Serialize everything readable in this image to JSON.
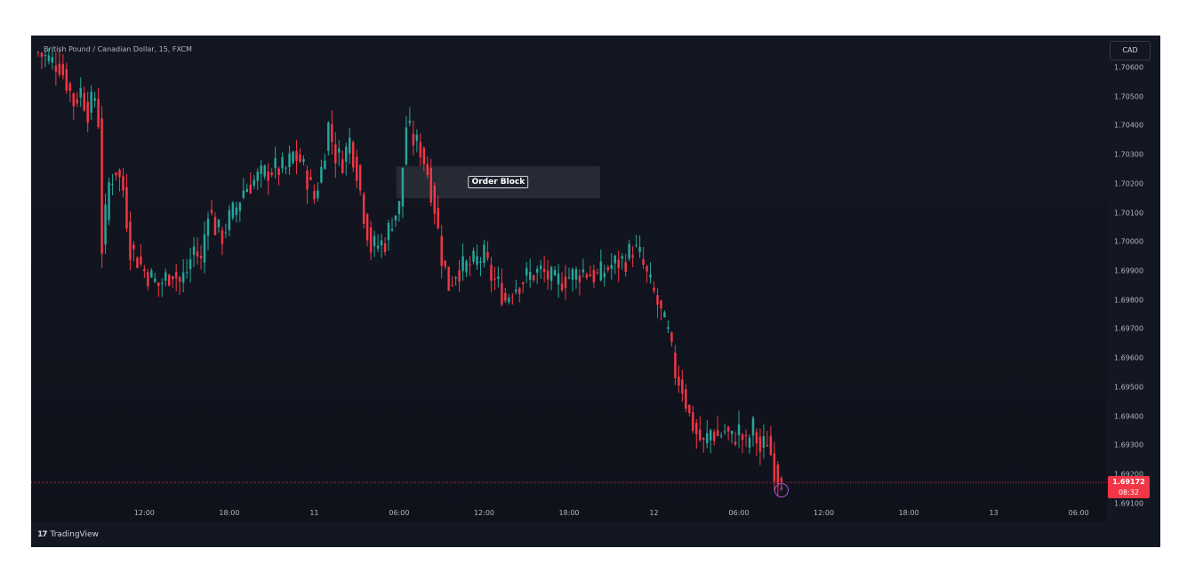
{
  "chart_data": {
    "type": "candlestick",
    "title": "British Pound / Canadian Dollar, 15, FXCM",
    "quote_currency": "CAD",
    "ylim": [
      1.6909,
      1.7071
    ],
    "y_ticks": [
      1.706,
      1.705,
      1.704,
      1.703,
      1.702,
      1.701,
      1.7,
      1.699,
      1.698,
      1.697,
      1.696,
      1.695,
      1.694,
      1.693,
      1.692,
      1.691
    ],
    "y_tick_labels": [
      "1.70600",
      "1.70500",
      "1.70400",
      "1.70300",
      "1.70200",
      "1.70100",
      "1.70000",
      "1.69900",
      "1.69800",
      "1.69700",
      "1.69600",
      "1.69500",
      "1.69400",
      "1.69300",
      "1.69200",
      "1.69100"
    ],
    "x_range_hours": [
      0,
      60
    ],
    "x_ticks": [
      {
        "t": 2,
        "label": "12:00"
      },
      {
        "t": 8,
        "label": "18:00"
      },
      {
        "t": 14,
        "label": "11"
      },
      {
        "t": 20,
        "label": "06:00"
      },
      {
        "t": 26,
        "label": "12:00"
      },
      {
        "t": 32,
        "label": "18:00"
      },
      {
        "t": 38,
        "label": "12"
      },
      {
        "t": 44,
        "label": "06:00"
      },
      {
        "t": 50,
        "label": "12:00"
      },
      {
        "t": 56,
        "label": "18:00"
      },
      {
        "t": 62,
        "label": "13"
      },
      {
        "t": 68,
        "label": "06:00"
      }
    ],
    "price_path": [
      [
        -5.5,
        1.7065
      ],
      [
        -4.5,
        1.7062
      ],
      [
        -4.0,
        1.7061
      ],
      [
        -3.5,
        1.7055
      ],
      [
        -3.0,
        1.7048
      ],
      [
        -2.5,
        1.7052
      ],
      [
        -2.0,
        1.7045
      ],
      [
        -1.5,
        1.705
      ],
      [
        -1.2,
        1.704
      ],
      [
        -1.0,
        1.6998
      ],
      [
        -0.5,
        1.702
      ],
      [
        0.0,
        1.7025
      ],
      [
        0.5,
        1.7018
      ],
      [
        1.0,
        1.6998
      ],
      [
        2.0,
        1.699
      ],
      [
        3.0,
        1.6985
      ],
      [
        4.0,
        1.699
      ],
      [
        4.5,
        1.6986
      ],
      [
        5.0,
        1.699
      ],
      [
        5.5,
        1.6998
      ],
      [
        6.0,
        1.6993
      ],
      [
        6.5,
        1.7012
      ],
      [
        7.0,
        1.7005
      ],
      [
        7.5,
        1.7002
      ],
      [
        8.0,
        1.7008
      ],
      [
        8.5,
        1.7012
      ],
      [
        9.0,
        1.7018
      ],
      [
        9.5,
        1.702
      ],
      [
        10.0,
        1.7022
      ],
      [
        11.0,
        1.7025
      ],
      [
        12.0,
        1.7025
      ],
      [
        12.5,
        1.703
      ],
      [
        13.0,
        1.7028
      ],
      [
        13.5,
        1.7022
      ],
      [
        14.0,
        1.7015
      ],
      [
        14.5,
        1.7025
      ],
      [
        15.0,
        1.704
      ],
      [
        15.5,
        1.703
      ],
      [
        16.0,
        1.7028
      ],
      [
        16.5,
        1.7035
      ],
      [
        17.0,
        1.7025
      ],
      [
        17.5,
        1.701
      ],
      [
        18.0,
        1.6998
      ],
      [
        19.0,
        1.7
      ],
      [
        19.5,
        1.7008
      ],
      [
        20.0,
        1.7012
      ],
      [
        20.5,
        1.704
      ],
      [
        21.0,
        1.7035
      ],
      [
        21.5,
        1.7032
      ],
      [
        22.0,
        1.7024
      ],
      [
        22.5,
        1.7012
      ],
      [
        23.0,
        1.6995
      ],
      [
        23.5,
        1.6985
      ],
      [
        24.0,
        1.699
      ],
      [
        25.0,
        1.6992
      ],
      [
        26.0,
        1.6995
      ],
      [
        26.5,
        1.6988
      ],
      [
        27.0,
        1.6985
      ],
      [
        27.5,
        1.698
      ],
      [
        28.0,
        1.6984
      ],
      [
        29.0,
        1.6988
      ],
      [
        30.0,
        1.699
      ],
      [
        31.0,
        1.6986
      ],
      [
        32.0,
        1.6988
      ],
      [
        33.0,
        1.699
      ],
      [
        34.0,
        1.6988
      ],
      [
        35.0,
        1.6992
      ],
      [
        36.0,
        1.6994
      ],
      [
        36.5,
        1.6998
      ],
      [
        37.0,
        1.6995
      ],
      [
        37.5,
        1.6988
      ],
      [
        38.0,
        1.6982
      ],
      [
        38.5,
        1.6975
      ],
      [
        39.0,
        1.6968
      ],
      [
        39.5,
        1.6955
      ],
      [
        40.0,
        1.695
      ],
      [
        40.5,
        1.694
      ],
      [
        41.0,
        1.6934
      ],
      [
        41.5,
        1.693
      ],
      [
        42.0,
        1.6935
      ],
      [
        42.5,
        1.6933
      ],
      [
        43.0,
        1.6935
      ],
      [
        43.5,
        1.6932
      ],
      [
        44.0,
        1.6935
      ],
      [
        44.5,
        1.693
      ],
      [
        45.0,
        1.6936
      ],
      [
        45.5,
        1.6928
      ],
      [
        46.0,
        1.6932
      ],
      [
        46.5,
        1.6922
      ],
      [
        47.0,
        1.69172
      ]
    ],
    "last_price": 1.69172,
    "last_price_label": "1.69172",
    "countdown": "08:32",
    "order_block": {
      "label": "Order Block",
      "t_start": 19.8,
      "t_end": 34.2,
      "price_top": 1.7026,
      "price_bottom": 1.7015
    }
  },
  "footer": {
    "brand": "TradingView",
    "logo_mark": "17"
  },
  "alert_icon": "lightning-icon",
  "colors": {
    "background": "#131722",
    "up": "#26a69a",
    "down": "#f23645",
    "text": "#b2b5be",
    "zone": "#2a2e39",
    "alert": "#b24fd6"
  }
}
